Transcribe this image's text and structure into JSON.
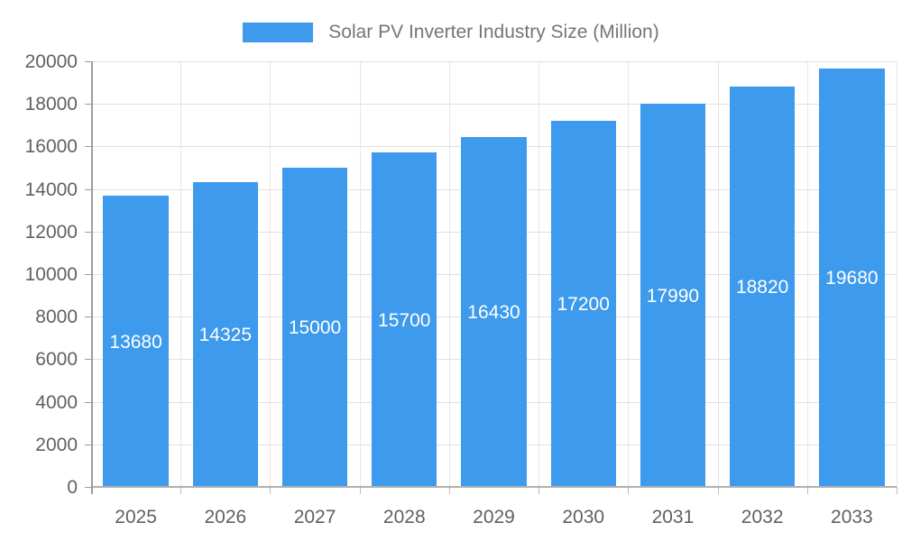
{
  "legend": {
    "label": "Solar PV Inverter Industry Size (Million)",
    "swatch_color": "#3d9aec"
  },
  "chart_data": {
    "type": "bar",
    "title": "Solar PV Inverter Industry Size (Million)",
    "categories": [
      "2025",
      "2026",
      "2027",
      "2028",
      "2029",
      "2030",
      "2031",
      "2032",
      "2033"
    ],
    "values": [
      13680,
      14325,
      15000,
      15700,
      16430,
      17200,
      17990,
      18820,
      19680
    ],
    "data_labels": [
      "13680",
      "14325",
      "15000",
      "15700",
      "16430",
      "17200",
      "17990",
      "18820",
      "19680"
    ],
    "y_tick_labels": [
      "0",
      "2000",
      "4000",
      "6000",
      "8000",
      "10000",
      "12000",
      "14000",
      "16000",
      "18000",
      "20000"
    ],
    "xlabel": "",
    "ylabel": "",
    "ylim": [
      0,
      20000
    ],
    "ytick_step": 2000,
    "grid": true,
    "legend_position": "top",
    "bar_color": "#3d9aec",
    "bar_width_fraction": 0.73,
    "value_label_color": "#ffffff",
    "axis_label_color": "#616161",
    "gridline_color": "#e0e0e0",
    "axis_line_color": "#9e9e9e"
  }
}
